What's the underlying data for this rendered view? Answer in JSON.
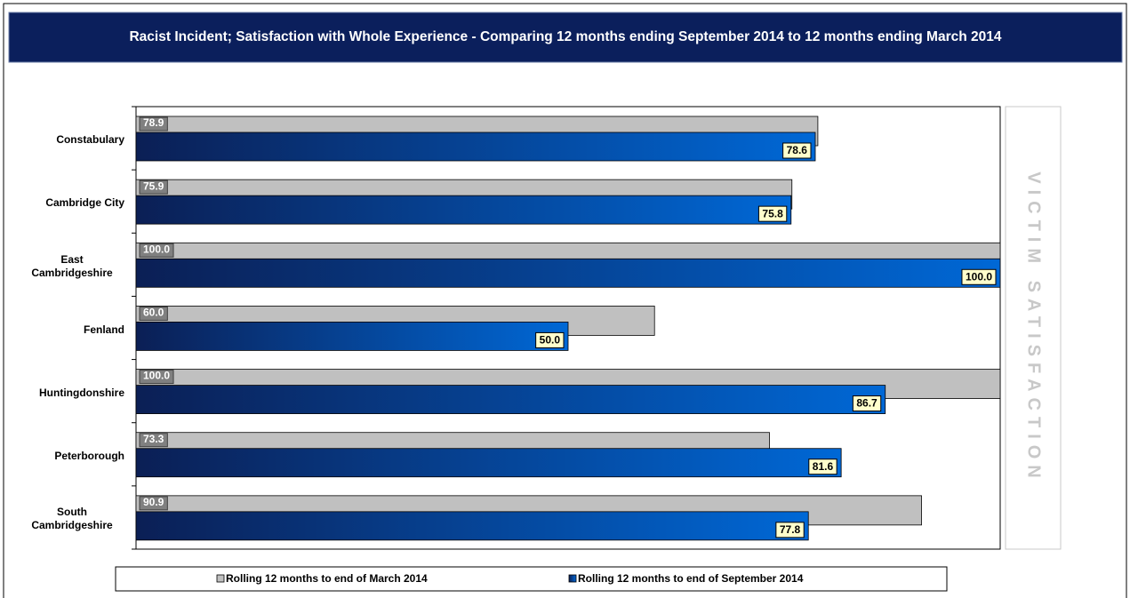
{
  "chart_data": {
    "type": "bar",
    "orientation": "horizontal",
    "title": "Racist Incident; Satisfaction with Whole Experience - Comparing 12 months ending September 2014 to 12 months ending March 2014",
    "side_label": "VICTIM SATISFACTION",
    "categories": [
      "Constabulary",
      "Cambridge City",
      "East Cambridgeshire",
      "Fenland",
      "Huntingdonshire",
      "Peterborough",
      "South Cambridgeshire"
    ],
    "series": [
      {
        "name": "Rolling 12 months to end of March 2014",
        "color": "#c0c0c0",
        "values": [
          78.9,
          75.9,
          100,
          60,
          100,
          73.3,
          90.9
        ],
        "value_labels": [
          "78.9",
          "75.9",
          "100.0",
          "60.0",
          "100.0",
          "73.3",
          "90.9"
        ]
      },
      {
        "name": "Rolling 12 months to end of September 2014",
        "color": "#0068d6",
        "values": [
          78.6,
          75.8,
          100,
          50,
          86.7,
          81.6,
          77.8
        ],
        "value_labels": [
          "78.6",
          "75.8",
          "100.0",
          "50.0",
          "86.7",
          "81.6",
          "77.8"
        ]
      }
    ],
    "xlim": [
      0,
      100
    ],
    "legend": "bottom"
  }
}
